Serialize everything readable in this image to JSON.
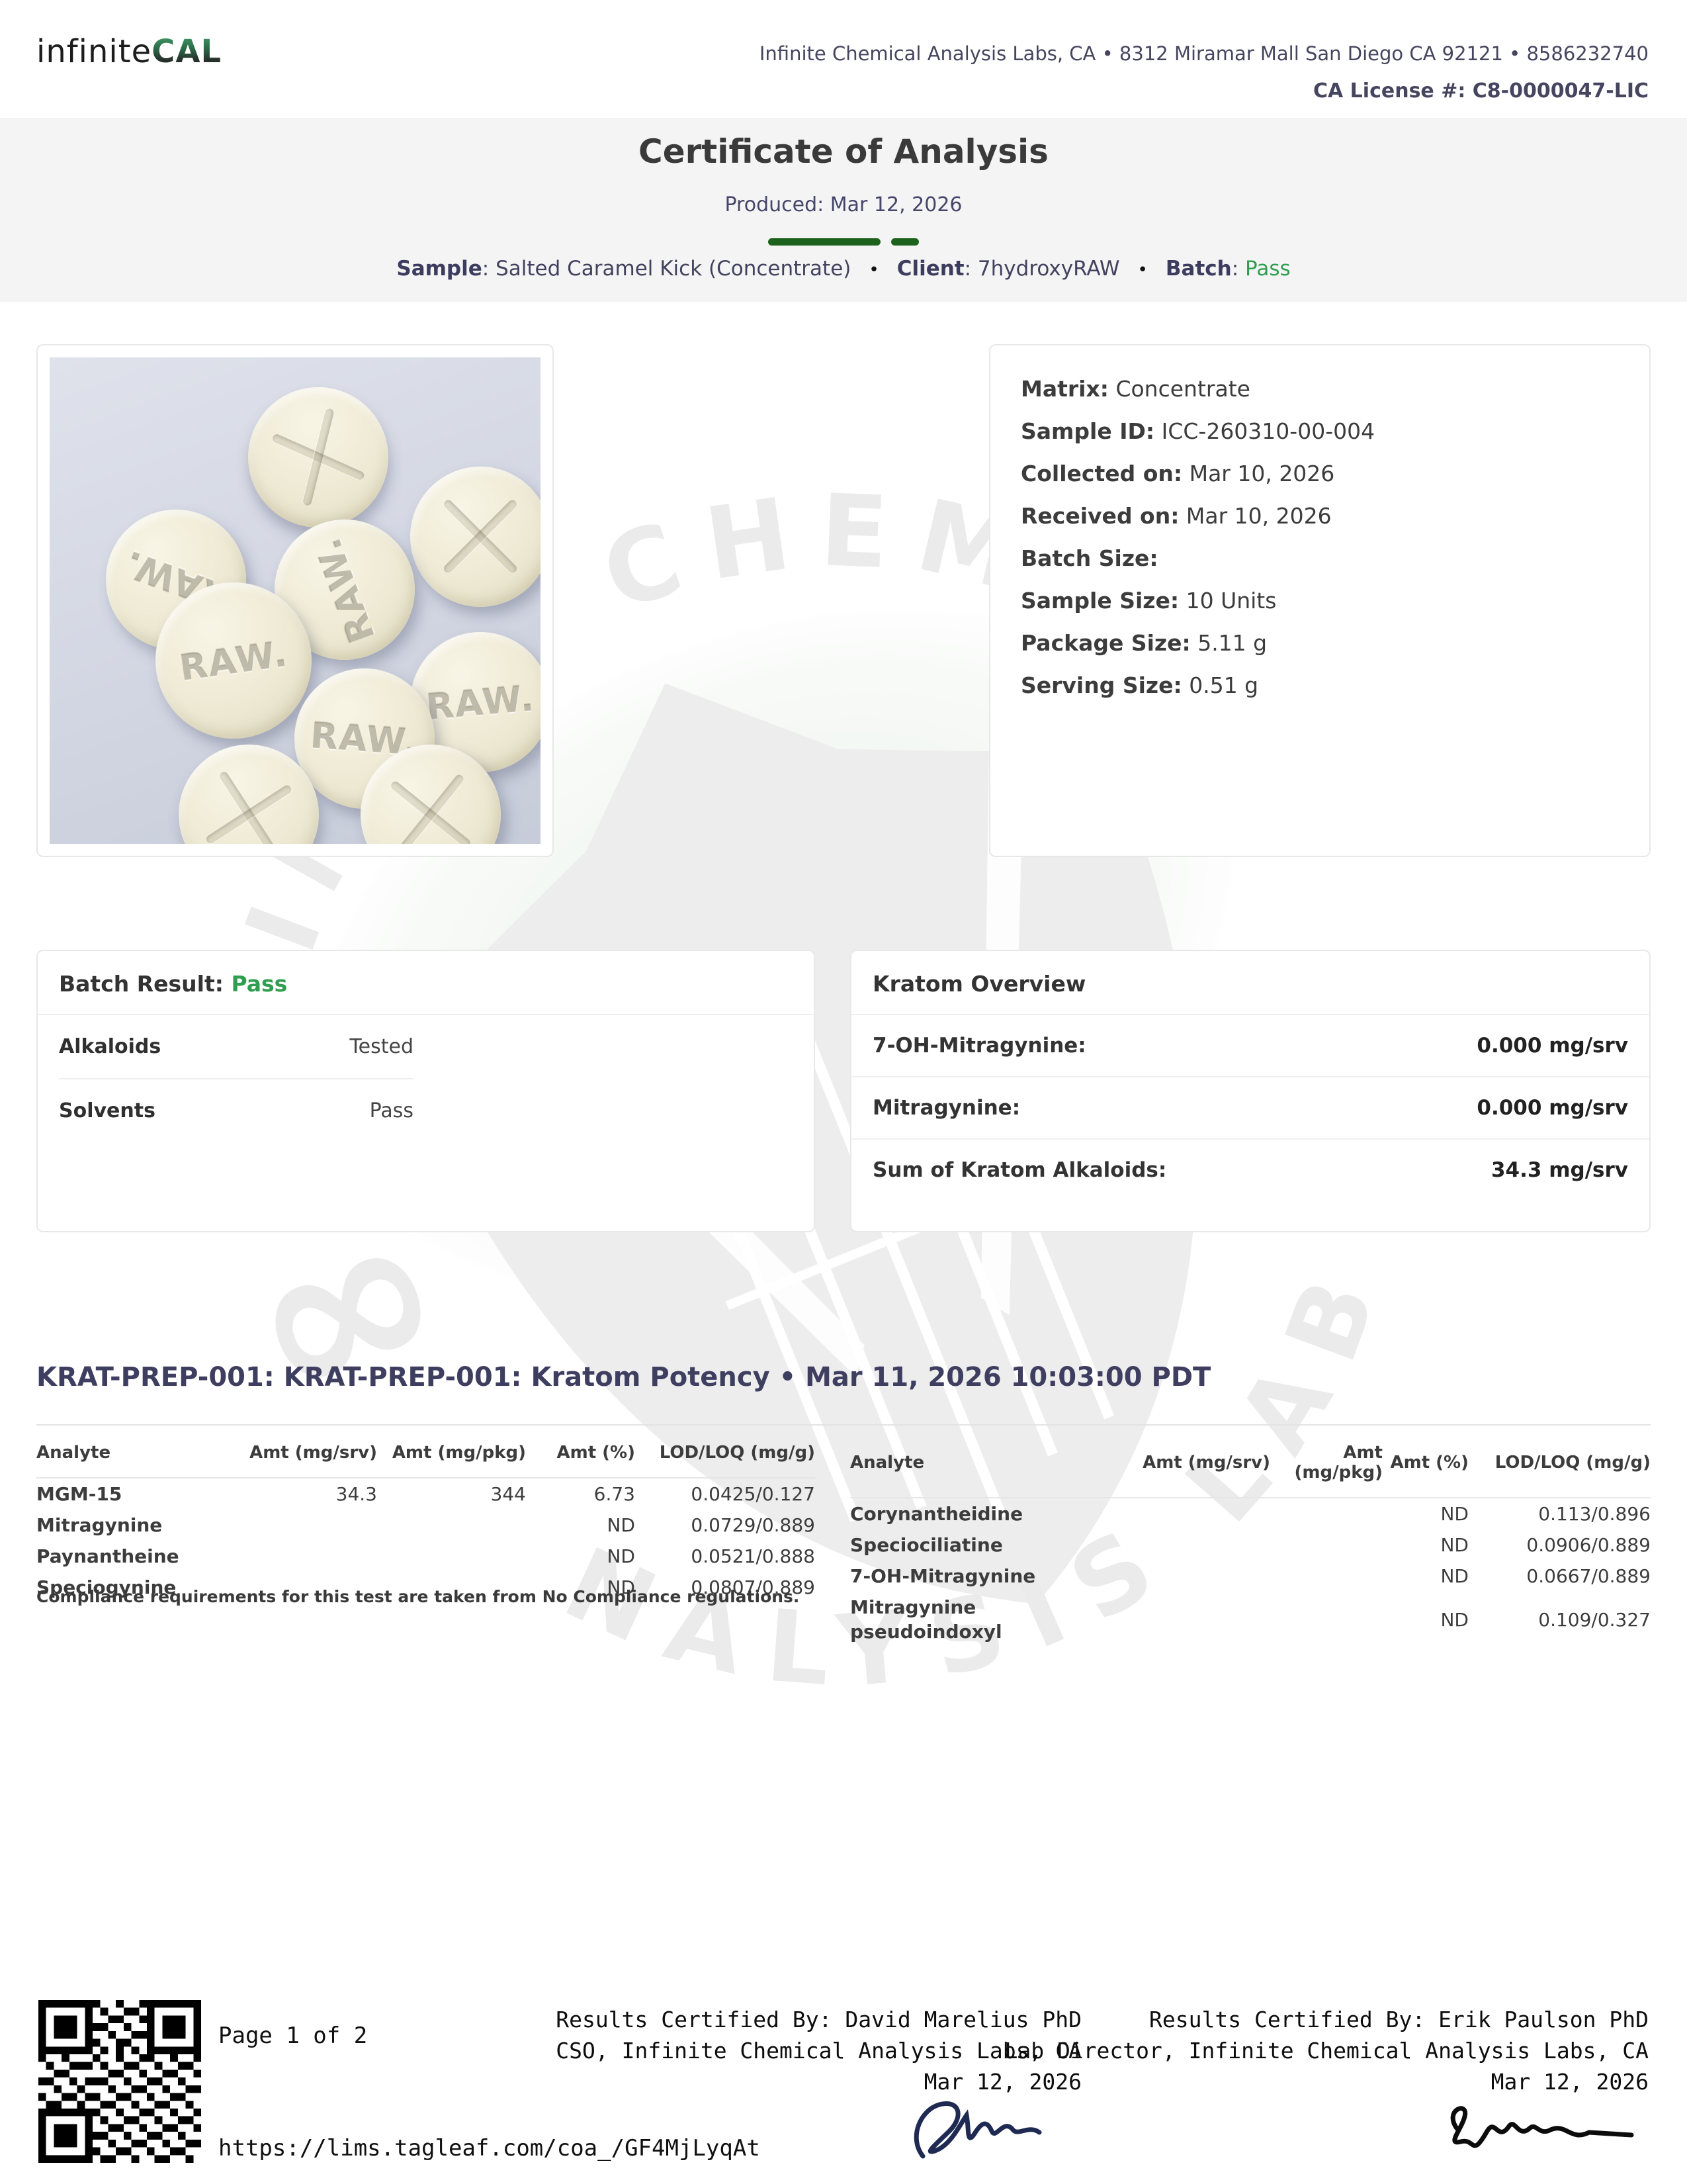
{
  "header": {
    "logo_prefix": "infinite",
    "logo_suffix": "CAL",
    "address": "Infinite Chemical Analysis Labs, CA • 8312 Miramar Mall San Diego CA 92121 • 8586232740",
    "license": "CA License #: C8-0000047-LIC"
  },
  "title_block": {
    "title": "Certificate of Analysis",
    "produced": "Produced: Mar 12, 2026",
    "sample_label": "Sample",
    "sample_value": ": Salted Caramel Kick (Concentrate)",
    "client_label": "Client",
    "client_value": ": 7hydroxyRAW",
    "batch_label": "Batch",
    "batch_colon": ": ",
    "batch_value": "Pass",
    "bullet": "•"
  },
  "sample_photo": {
    "pill_imprint": "RAW."
  },
  "sample_info": {
    "rows": [
      {
        "label": "Matrix:",
        "value": "Concentrate"
      },
      {
        "label": "Sample ID:",
        "value": "ICC-260310-00-004"
      },
      {
        "label": "Collected on:",
        "value": "Mar 10, 2026"
      },
      {
        "label": "Received on:",
        "value": "Mar 10, 2026"
      },
      {
        "label": "Batch Size:",
        "value": ""
      },
      {
        "label": "Sample Size:",
        "value": "10 Units"
      },
      {
        "label": "Package Size:",
        "value": "5.11 g"
      },
      {
        "label": "Serving Size:",
        "value": "0.51 g"
      }
    ]
  },
  "batch_result": {
    "title_label": "Batch Result",
    "title_colon": ": ",
    "title_value": "Pass",
    "rows": [
      {
        "label": "Alkaloids",
        "value": "Tested"
      },
      {
        "label": "Solvents",
        "value": "Pass"
      }
    ]
  },
  "kratom_overview": {
    "title": "Kratom Overview",
    "rows": [
      {
        "label": "7-OH-Mitragynine:",
        "value": "0.000 mg/srv"
      },
      {
        "label": "Mitragynine:",
        "value": "0.000 mg/srv"
      },
      {
        "label": "Sum of Kratom Alkaloids:",
        "value": "34.3 mg/srv"
      }
    ]
  },
  "potency_section": {
    "heading": "KRAT-PREP-001: KRAT-PREP-001: Kratom Potency • Mar 11, 2026 10:03:00 PDT",
    "headers": [
      "Analyte",
      "Amt (mg/srv)",
      "Amt (mg/pkg)",
      "Amt (%)",
      "LOD/LOQ (mg/g)"
    ],
    "left_rows": [
      {
        "analyte": "MGM-15",
        "srv": "34.3",
        "pkg": "344",
        "pct": "6.73",
        "lodloq": "0.0425/0.127"
      },
      {
        "analyte": "Mitragynine",
        "srv": "",
        "pkg": "",
        "pct": "ND",
        "lodloq": "0.0729/0.889"
      },
      {
        "analyte": "Paynantheine",
        "srv": "",
        "pkg": "",
        "pct": "ND",
        "lodloq": "0.0521/0.888"
      },
      {
        "analyte": "Speciogynine",
        "srv": "",
        "pkg": "",
        "pct": "ND",
        "lodloq": "0.0807/0.889"
      }
    ],
    "right_rows": [
      {
        "analyte": "Corynantheidine",
        "srv": "",
        "pkg": "",
        "pct": "ND",
        "lodloq": "0.113/0.896"
      },
      {
        "analyte": "Speciociliatine",
        "srv": "",
        "pkg": "",
        "pct": "ND",
        "lodloq": "0.0906/0.889"
      },
      {
        "analyte": "7-OH-Mitragynine",
        "srv": "",
        "pkg": "",
        "pct": "ND",
        "lodloq": "0.0667/0.889"
      },
      {
        "analyte": "Mitragynine pseudoindoxyl",
        "srv": "",
        "pkg": "",
        "pct": "ND",
        "lodloq": "0.109/0.327"
      }
    ],
    "compliance_note": "Compliance requirements for this test are taken from No Compliance regulations."
  },
  "watermark": {
    "top_text": "INFINITE CHEMICAL",
    "bottom_text": "ANALYSIS LABS",
    "infinity": "∞"
  },
  "footer": {
    "page": "Page 1 of 2",
    "url": "https://lims.tagleaf.com/coa_/GF4MjLyqAt",
    "certifier_center": {
      "line1": "Results Certified By: David Marelius PhD",
      "line2": "CSO, Infinite Chemical Analysis Labs, CA",
      "line3": "Mar 12, 2026"
    },
    "certifier_right": {
      "line1": "Results Certified By: Erik Paulson PhD",
      "line2": "Lab Director, Infinite Chemical Analysis Labs, CA",
      "line3": "Mar 12, 2026"
    }
  },
  "colors": {
    "accent_green": "#2f9e4e",
    "divider_green": "#1c611c",
    "navy": "#3e3e60"
  }
}
